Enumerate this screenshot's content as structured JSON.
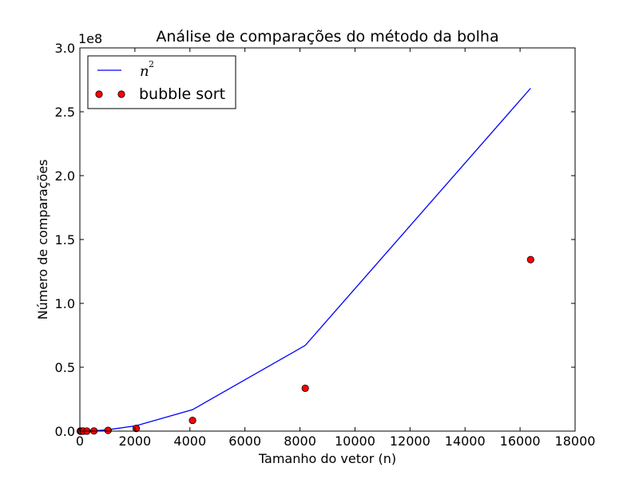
{
  "chart_data": {
    "type": "line+scatter",
    "title": "Análise de comparações do método da bolha",
    "xlabel": "Tamanho do vetor (n)",
    "ylabel": "Número de comparações",
    "y_offset_label": "1e8",
    "xlim": [
      0,
      18000
    ],
    "ylim": [
      0,
      3.0
    ],
    "y_scale": 100000000,
    "x_ticks": [
      0,
      2000,
      4000,
      6000,
      8000,
      10000,
      12000,
      14000,
      16000,
      18000
    ],
    "x_tick_labels": [
      "0",
      "2000",
      "4000",
      "6000",
      "8000",
      "10000",
      "12000",
      "14000",
      "16000",
      "18000"
    ],
    "y_ticks": [
      0,
      0.5,
      1.0,
      1.5,
      2.0,
      2.5,
      3.0
    ],
    "y_tick_labels": [
      "0.0",
      "0.5",
      "1.0",
      "1.5",
      "2.0",
      "2.5",
      "3.0"
    ],
    "legend_position": "upper-left",
    "series": [
      {
        "name": "n^2",
        "label_base": "n",
        "label_exp": "2",
        "kind": "line",
        "color": "#0000ff",
        "x": [
          16,
          32,
          64,
          128,
          256,
          512,
          1024,
          2048,
          4096,
          8192,
          16384
        ],
        "y": [
          2.56e-06,
          1.024e-05,
          4.096e-05,
          0.00016384,
          0.00065536,
          0.00262144,
          0.01048576,
          0.04194304,
          0.16777216,
          0.67108864,
          2.68435456
        ]
      },
      {
        "name": "bubble sort",
        "kind": "scatter",
        "color": "#ff0000",
        "x": [
          16,
          32,
          64,
          128,
          256,
          512,
          1024,
          2048,
          4096,
          8192,
          16384
        ],
        "y": [
          1.2e-06,
          4.96e-06,
          2.016e-05,
          8.128e-05,
          0.0003264,
          0.00130816,
          0.00523776,
          0.02096128,
          0.0838656,
          0.33550336,
          1.34209536
        ]
      }
    ]
  }
}
